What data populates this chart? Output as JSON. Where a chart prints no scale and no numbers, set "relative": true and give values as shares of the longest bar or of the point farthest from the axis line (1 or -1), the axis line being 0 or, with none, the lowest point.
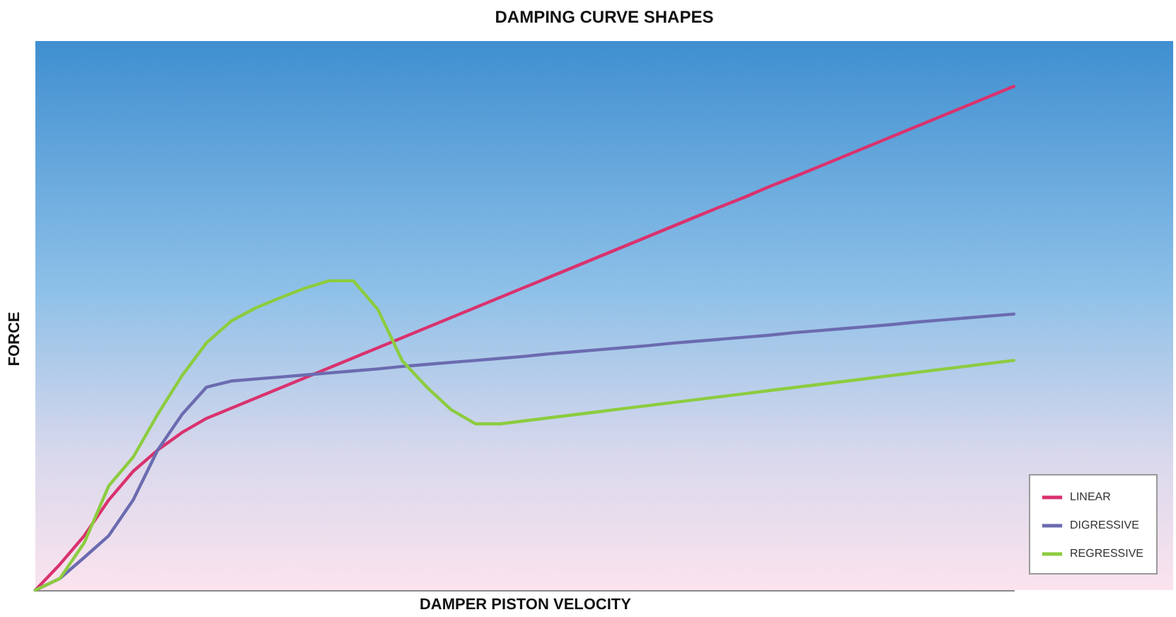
{
  "chart_data": {
    "type": "line",
    "title": "DAMPING CURVE SHAPES",
    "xlabel": "DAMPER PISTON VELOCITY",
    "ylabel": "FORCE",
    "relative": true,
    "legend": "bottom right",
    "line_style": "solid",
    "categories": [
      null,
      null,
      null,
      null,
      null,
      null,
      null,
      null,
      null,
      null,
      null,
      null,
      null,
      null,
      null,
      null,
      null,
      null,
      null,
      null,
      null,
      null,
      null,
      null,
      null,
      null,
      null,
      null,
      null,
      null,
      null,
      null,
      null,
      null,
      null,
      null,
      null,
      null,
      null,
      null,
      null
    ],
    "series": [
      {
        "name": "LINEAR",
        "color": "#d9326e",
        "values": [
          0,
          0.051,
          0.108,
          0.179,
          0.236,
          0.278,
          0.313,
          0.341,
          0.361,
          0.381,
          0.401,
          0.421,
          0.441,
          0.461,
          0.481,
          0.501,
          0.521,
          0.541,
          0.561,
          0.581,
          0.601,
          0.621,
          0.641,
          0.661,
          0.681,
          0.701,
          0.721,
          0.741,
          0.761,
          0.78,
          0.801,
          0.82,
          0.84,
          0.86,
          0.88,
          0.9,
          0.92,
          0.94,
          0.96,
          0.98,
          1
        ]
      },
      {
        "name": "DIGRESSIVE",
        "color": "#6b6bb0",
        "values": [
          0,
          0.023,
          0.065,
          0.108,
          0.179,
          0.278,
          0.349,
          0.403,
          0.415,
          0.419,
          0.423,
          0.427,
          0.431,
          0.435,
          0.439,
          0.444,
          0.448,
          0.452,
          0.456,
          0.46,
          0.464,
          0.469,
          0.473,
          0.477,
          0.481,
          0.485,
          0.49,
          0.494,
          0.498,
          0.502,
          0.506,
          0.511,
          0.515,
          0.519,
          0.523,
          0.527,
          0.532,
          0.536,
          0.54,
          0.544,
          0.548
        ]
      },
      {
        "name": "REGRESSIVE",
        "color": "#8ccc3f",
        "values": [
          0,
          0.023,
          0.094,
          0.207,
          0.264,
          0.349,
          0.426,
          0.491,
          0.534,
          0.56,
          0.58,
          0.599,
          0.614,
          0.614,
          0.557,
          0.455,
          0.403,
          0.358,
          0.33,
          0.33,
          0.336,
          0.342,
          0.348,
          0.354,
          0.36,
          0.366,
          0.372,
          0.378,
          0.384,
          0.39,
          0.396,
          0.402,
          0.408,
          0.414,
          0.42,
          0.426,
          0.432,
          0.438,
          0.444,
          0.45,
          0.456
        ]
      }
    ]
  }
}
